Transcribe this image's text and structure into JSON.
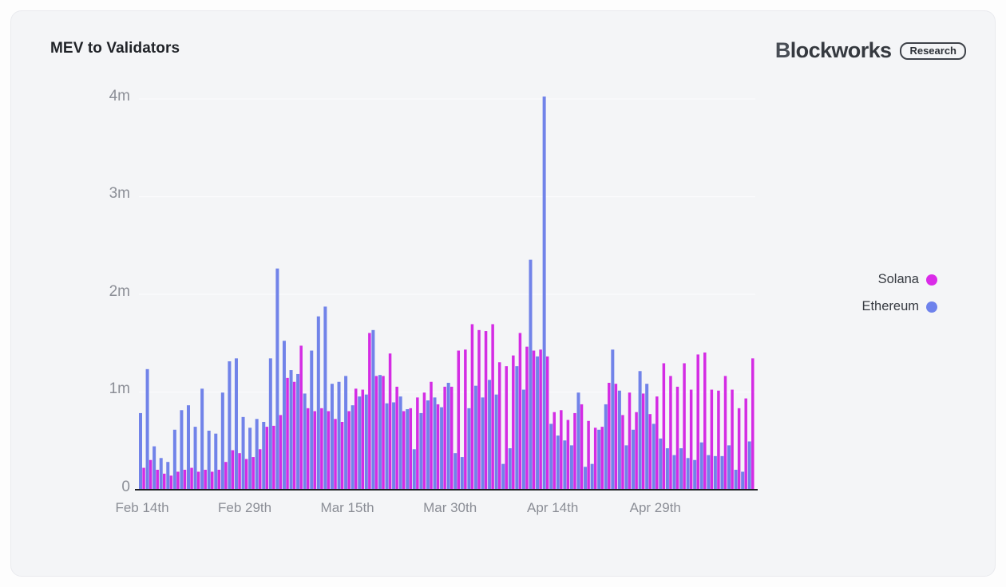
{
  "card": {
    "title": "MEV to Validators"
  },
  "logo": {
    "brand": "Blockworks",
    "brand_first_letter": "B",
    "brand_rest": "lockworks",
    "badge": "Research"
  },
  "legend": {
    "position": "right",
    "items": [
      {
        "label": "Solana",
        "color": "#da2be8"
      },
      {
        "label": "Ethereum",
        "color": "#6e82ec"
      }
    ]
  },
  "chart_data": {
    "type": "bar",
    "title": "MEV to Validators",
    "xlabel": "",
    "ylabel": "",
    "values_unit": "millions",
    "ylim": [
      0,
      4.3
    ],
    "grid": "horizontal-faint",
    "legend_position": "right",
    "y_tick_values": [
      0,
      1,
      2,
      3,
      4
    ],
    "y_tick_labels": [
      "0",
      "1m",
      "2m",
      "3m",
      "4m"
    ],
    "x_ticks": [
      {
        "label": "Feb 14th",
        "day_index": 0
      },
      {
        "label": "Feb 29th",
        "day_index": 15
      },
      {
        "label": "Mar 15th",
        "day_index": 30
      },
      {
        "label": "Mar 30th",
        "day_index": 45
      },
      {
        "label": "Apr 14th",
        "day_index": 60
      },
      {
        "label": "Apr 29th",
        "day_index": 75
      }
    ],
    "dates": [
      "Feb 14",
      "Feb 15",
      "Feb 16",
      "Feb 17",
      "Feb 18",
      "Feb 19",
      "Feb 20",
      "Feb 21",
      "Feb 22",
      "Feb 23",
      "Feb 24",
      "Feb 25",
      "Feb 26",
      "Feb 27",
      "Feb 28",
      "Feb 29",
      "Mar 1",
      "Mar 2",
      "Mar 3",
      "Mar 4",
      "Mar 5",
      "Mar 6",
      "Mar 7",
      "Mar 8",
      "Mar 9",
      "Mar 10",
      "Mar 11",
      "Mar 12",
      "Mar 13",
      "Mar 14",
      "Mar 15",
      "Mar 16",
      "Mar 17",
      "Mar 18",
      "Mar 19",
      "Mar 20",
      "Mar 21",
      "Mar 22",
      "Mar 23",
      "Mar 24",
      "Mar 25",
      "Mar 26",
      "Mar 27",
      "Mar 28",
      "Mar 29",
      "Mar 30",
      "Mar 31",
      "Apr 1",
      "Apr 2",
      "Apr 3",
      "Apr 4",
      "Apr 5",
      "Apr 6",
      "Apr 7",
      "Apr 8",
      "Apr 9",
      "Apr 10",
      "Apr 11",
      "Apr 12",
      "Apr 13",
      "Apr 14",
      "Apr 15",
      "Apr 16",
      "Apr 17",
      "Apr 18",
      "Apr 19",
      "Apr 20",
      "Apr 21",
      "Apr 22",
      "Apr 23",
      "Apr 24",
      "Apr 25",
      "Apr 26",
      "Apr 27",
      "Apr 28",
      "Apr 29",
      "Apr 30",
      "May 1",
      "May 2",
      "May 3",
      "May 4",
      "May 5",
      "May 6",
      "May 7",
      "May 8",
      "May 9",
      "May 10",
      "May 11",
      "May 12",
      "May 13"
    ],
    "series": [
      {
        "name": "Ethereum",
        "color": "#7183e9",
        "values": [
          0.78,
          1.23,
          0.44,
          0.32,
          0.28,
          0.61,
          0.81,
          0.86,
          0.64,
          1.03,
          0.6,
          0.57,
          0.99,
          1.31,
          1.34,
          0.74,
          0.63,
          0.72,
          0.69,
          1.34,
          2.26,
          1.52,
          1.22,
          1.18,
          0.98,
          1.42,
          1.77,
          1.87,
          1.08,
          1.1,
          1.16,
          0.86,
          0.95,
          0.97,
          1.63,
          1.17,
          0.88,
          0.89,
          0.95,
          0.82,
          0.41,
          0.78,
          0.91,
          0.94,
          0.84,
          1.09,
          0.37,
          0.33,
          0.83,
          1.06,
          0.94,
          1.12,
          0.97,
          0.26,
          0.42,
          1.26,
          1.02,
          2.35,
          1.36,
          4.02,
          0.67,
          0.55,
          0.5,
          0.45,
          0.99,
          0.23,
          0.26,
          0.61,
          0.87,
          1.43,
          1.01,
          0.45,
          0.61,
          1.21,
          1.08,
          0.67,
          0.52,
          0.42,
          0.35,
          0.42,
          0.32,
          0.3,
          0.48,
          0.35,
          0.34,
          0.34,
          0.45,
          0.2,
          0.18,
          0.49
        ]
      },
      {
        "name": "Solana",
        "color": "#d42ce4",
        "values": [
          0.22,
          0.3,
          0.2,
          0.16,
          0.14,
          0.18,
          0.2,
          0.22,
          0.18,
          0.2,
          0.18,
          0.2,
          0.28,
          0.4,
          0.37,
          0.31,
          0.33,
          0.41,
          0.64,
          0.65,
          0.76,
          1.14,
          1.1,
          1.47,
          0.83,
          0.8,
          0.83,
          0.8,
          0.72,
          0.69,
          0.8,
          1.03,
          1.02,
          1.6,
          1.16,
          1.16,
          1.39,
          1.05,
          0.8,
          0.83,
          0.94,
          0.99,
          1.1,
          0.87,
          1.05,
          1.05,
          1.42,
          1.43,
          1.69,
          1.63,
          1.62,
          1.69,
          1.3,
          1.26,
          1.37,
          1.6,
          1.46,
          1.42,
          1.43,
          1.36,
          0.79,
          0.81,
          0.71,
          0.78,
          0.87,
          0.7,
          0.63,
          0.64,
          1.09,
          1.08,
          0.76,
          0.99,
          0.79,
          0.98,
          0.77,
          0.95,
          1.29,
          1.16,
          1.05,
          1.29,
          1.02,
          1.38,
          1.4,
          1.02,
          1.01,
          1.16,
          1.02,
          0.83,
          0.93,
          1.34
        ]
      }
    ]
  }
}
